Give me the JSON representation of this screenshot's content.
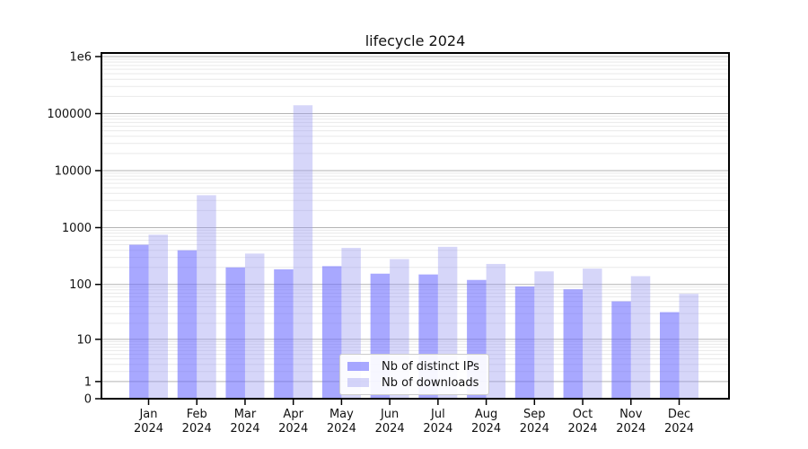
{
  "chart_data": {
    "type": "bar",
    "title": "lifecycle 2024",
    "categories": [
      "Jan 2024",
      "Feb 2024",
      "Mar 2024",
      "Apr 2024",
      "May 2024",
      "Jun 2024",
      "Jul 2024",
      "Aug 2024",
      "Sep 2024",
      "Oct 2024",
      "Nov 2024",
      "Dec 2024"
    ],
    "months": [
      "Jan",
      "Feb",
      "Mar",
      "Apr",
      "May",
      "Jun",
      "Jul",
      "Aug",
      "Sep",
      "Oct",
      "Nov",
      "Dec"
    ],
    "year_label": "2024",
    "series": [
      {
        "name": "Nb of distinct IPs",
        "color": "rgba(102,102,255,0.57)",
        "values": [
          500,
          400,
          200,
          185,
          210,
          155,
          150,
          120,
          92,
          82,
          50,
          32
        ]
      },
      {
        "name": "Nb of downloads",
        "color": "rgba(153,153,240,0.4)",
        "values": [
          750,
          3700,
          350,
          140000,
          440,
          280,
          460,
          230,
          170,
          190,
          140,
          68
        ]
      }
    ],
    "y_scale": "symlog (positions proportional to log10(value+1))",
    "ylim": [
      0,
      1000000
    ],
    "y_ticks": [
      {
        "label": "1e6",
        "value": 1000000
      },
      {
        "label": "100000",
        "value": 100000
      },
      {
        "label": "10000",
        "value": 10000
      },
      {
        "label": "1000",
        "value": 1000
      },
      {
        "label": "100",
        "value": 100
      },
      {
        "label": "10",
        "value": 10
      },
      {
        "label": "1",
        "value": 1
      },
      {
        "label": "0",
        "value": 0
      }
    ],
    "grid": {
      "horizontal_major": true,
      "horizontal_minor": true,
      "legend_position": "lower center"
    },
    "colors": {
      "grid_major": "#b3b3b3",
      "grid_minor": "#e9e9e9",
      "frame": "#000000",
      "text": "#111111"
    }
  }
}
